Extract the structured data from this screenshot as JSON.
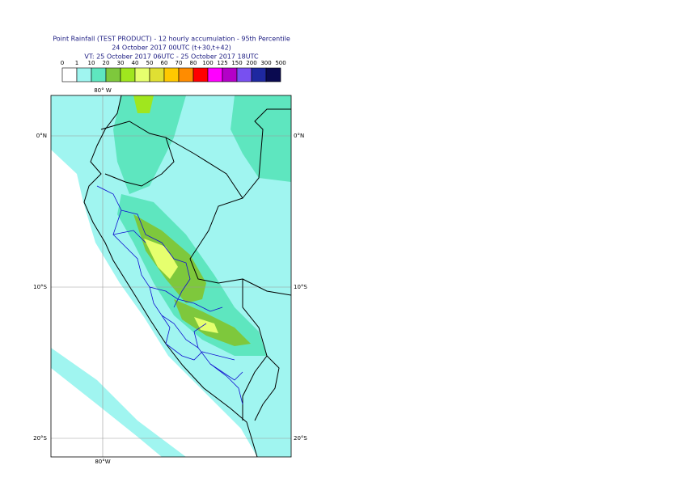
{
  "header": {
    "title": "Point Rainfall (TEST PRODUCT) - 12 hourly accumulation - 95th Percentile",
    "base_time": "24 October 2017 00UTC (t+30,t+42)",
    "valid_time": "VT: 25 October 2017 06UTC - 25 October 2017 18UTC"
  },
  "legend": {
    "thresholds": [
      "0",
      "1",
      "10",
      "20",
      "30",
      "40",
      "50",
      "60",
      "70",
      "80",
      "100",
      "125",
      "150",
      "200",
      "300",
      "500"
    ],
    "colors": [
      "#ffffff",
      "#a0f5f0",
      "#5ee6bf",
      "#7ec83c",
      "#a0e61e",
      "#e6ff6e",
      "#e0e033",
      "#ffc800",
      "#ff8c00",
      "#ff0000",
      "#ff00ff",
      "#b400c8",
      "#7850f0",
      "#1e28a0",
      "#0a0a50"
    ]
  },
  "map": {
    "lon_top": "80° W",
    "lon_bottom": "80°W",
    "lat_left": [
      "0°N",
      "10°S",
      "20°S"
    ],
    "lat_right": [
      "0°N",
      "10°S",
      "20°S"
    ]
  }
}
